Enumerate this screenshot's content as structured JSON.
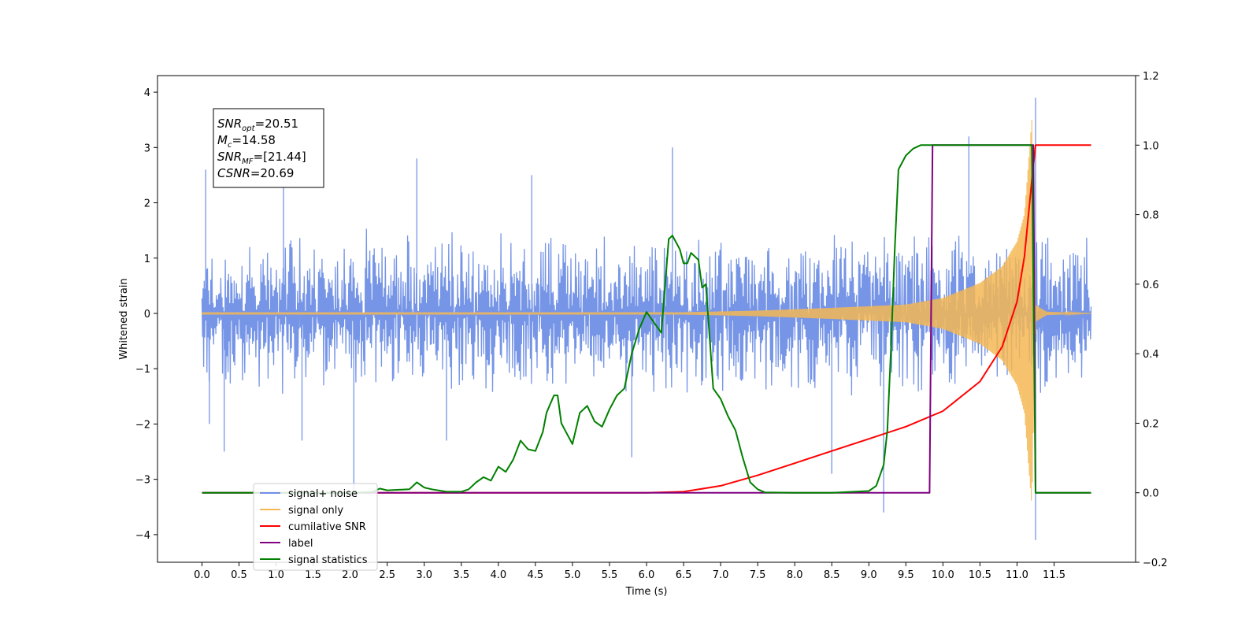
{
  "chart_data": {
    "type": "line",
    "xlabel": "Time (s)",
    "ylabel_left": "Whitened strain",
    "xlim": [
      -0.6,
      12.6
    ],
    "ylim_left": [
      -4.5,
      4.3
    ],
    "ylim_right": [
      -0.2,
      1.2
    ],
    "x_ticks": [
      0.0,
      0.5,
      1.0,
      1.5,
      2.0,
      2.5,
      3.0,
      3.5,
      4.0,
      4.5,
      5.0,
      5.5,
      6.0,
      6.5,
      7.0,
      7.5,
      8.0,
      8.5,
      9.0,
      9.5,
      10.0,
      10.5,
      11.0,
      11.5
    ],
    "x_tick_labels": [
      "0.0",
      "0.5",
      "1.0",
      "1.5",
      "2.0",
      "2.5",
      "3.0",
      "3.5",
      "4.0",
      "4.5",
      "5.0",
      "5.5",
      "6.0",
      "6.5",
      "7.0",
      "7.5",
      "8.0",
      "8.5",
      "9.0",
      "9.5",
      "10.0",
      "10.5",
      "11.0",
      "11.5"
    ],
    "y_left_ticks": [
      4,
      3,
      2,
      1,
      0,
      -1,
      -2,
      -3,
      -4
    ],
    "y_left_tick_labels": [
      "4",
      "3",
      "2",
      "1",
      "0",
      "−1",
      "−2",
      "−3",
      "−4"
    ],
    "y_right_ticks": [
      1.2,
      1.0,
      0.8,
      0.6,
      0.4,
      0.2,
      0.0,
      -0.2
    ],
    "y_right_tick_labels": [
      "1.2",
      "1.0",
      "0.8",
      "0.6",
      "0.4",
      "0.2",
      "0.0",
      "−0.2"
    ],
    "annotation": {
      "lines": [
        {
          "sym": "SNR",
          "sub": "opt",
          "value": "=20.51"
        },
        {
          "sym": "M",
          "sub": "c",
          "value": "=14.58"
        },
        {
          "sym": "SNR",
          "sub": "MF",
          "value": "=[21.44]"
        },
        {
          "sym": "CSNR",
          "sub": "",
          "value": "=20.69"
        }
      ]
    },
    "legend": {
      "position": "lower-left",
      "entries": [
        {
          "label": "signal+ noise",
          "color": "#6f8fe6"
        },
        {
          "label": "signal only",
          "color": "#f5b754"
        },
        {
          "label": "cumilative SNR",
          "color": "#ff0000"
        },
        {
          "label": "label",
          "color": "#800080"
        },
        {
          "label": "signal statistics",
          "color": "#008000"
        }
      ]
    },
    "series": [
      {
        "name": "signal+ noise",
        "axis": "left",
        "color": "#6f8fe6",
        "style": "noise-band",
        "x_range": [
          0.0,
          12.0
        ],
        "band": [
          -1.6,
          1.6
        ],
        "spikes": [
          {
            "x": 0.05,
            "y": 2.6
          },
          {
            "x": 0.1,
            "y": -2.0
          },
          {
            "x": 0.3,
            "y": -2.5
          },
          {
            "x": 1.1,
            "y": 2.5
          },
          {
            "x": 1.35,
            "y": -2.3
          },
          {
            "x": 2.05,
            "y": -3.3
          },
          {
            "x": 2.9,
            "y": 2.8
          },
          {
            "x": 3.3,
            "y": -2.3
          },
          {
            "x": 4.45,
            "y": 2.5
          },
          {
            "x": 5.8,
            "y": -2.6
          },
          {
            "x": 6.35,
            "y": 3.0
          },
          {
            "x": 8.5,
            "y": -2.9
          },
          {
            "x": 9.2,
            "y": -3.6
          },
          {
            "x": 10.35,
            "y": 3.2
          },
          {
            "x": 11.25,
            "y": 3.9
          },
          {
            "x": 11.25,
            "y": -4.1
          }
        ]
      },
      {
        "name": "signal only",
        "axis": "left",
        "color": "#f5b754",
        "style": "chirp",
        "x_range": [
          0.0,
          12.0
        ],
        "merger_x": 11.22,
        "envelope": [
          [
            6.5,
            0.02
          ],
          [
            7.5,
            0.05
          ],
          [
            8.5,
            0.1
          ],
          [
            9.5,
            0.16
          ],
          [
            10.0,
            0.28
          ],
          [
            10.5,
            0.55
          ],
          [
            10.8,
            0.85
          ],
          [
            11.0,
            1.3
          ],
          [
            11.1,
            1.8
          ],
          [
            11.2,
            3.5
          ],
          [
            11.25,
            0.15
          ],
          [
            11.4,
            0.03
          ],
          [
            12.0,
            0.0
          ]
        ]
      },
      {
        "name": "cumilative SNR",
        "axis": "right",
        "color": "#ff0000",
        "x": [
          0.0,
          6.0,
          6.5,
          7.0,
          7.5,
          8.0,
          8.5,
          9.0,
          9.5,
          10.0,
          10.5,
          10.8,
          11.0,
          11.1,
          11.2,
          11.25,
          12.0
        ],
        "y": [
          0.0,
          0.0,
          0.003,
          0.02,
          0.05,
          0.085,
          0.12,
          0.155,
          0.19,
          0.235,
          0.32,
          0.42,
          0.55,
          0.68,
          0.9,
          1.0,
          1.0
        ]
      },
      {
        "name": "label",
        "axis": "right",
        "color": "#800080",
        "x": [
          0.0,
          9.82,
          9.86,
          11.22,
          11.25,
          12.0
        ],
        "y": [
          0.0,
          0.0,
          1.0,
          1.0,
          0.0,
          0.0
        ]
      },
      {
        "name": "signal statistics",
        "axis": "right",
        "color": "#008000",
        "x": [
          0.0,
          2.0,
          2.3,
          2.4,
          2.5,
          2.8,
          2.9,
          3.0,
          3.1,
          3.3,
          3.5,
          3.6,
          3.7,
          3.8,
          3.9,
          4.0,
          4.1,
          4.2,
          4.3,
          4.4,
          4.5,
          4.6,
          4.65,
          4.75,
          4.8,
          4.85,
          4.9,
          5.0,
          5.1,
          5.2,
          5.3,
          5.4,
          5.5,
          5.6,
          5.7,
          5.8,
          5.9,
          6.0,
          6.1,
          6.2,
          6.3,
          6.35,
          6.45,
          6.5,
          6.55,
          6.6,
          6.7,
          6.75,
          6.8,
          6.9,
          7.0,
          7.1,
          7.2,
          7.3,
          7.4,
          7.5,
          7.6,
          8.0,
          8.5,
          9.0,
          9.1,
          9.2,
          9.25,
          9.3,
          9.35,
          9.4,
          9.45,
          9.5,
          9.6,
          9.7,
          9.8,
          10.0,
          10.5,
          11.0,
          11.2,
          11.25,
          11.3,
          12.0
        ],
        "y": [
          0.0,
          0.0,
          0.002,
          0.012,
          0.007,
          0.01,
          0.03,
          0.015,
          0.01,
          0.003,
          0.003,
          0.01,
          0.03,
          0.045,
          0.035,
          0.075,
          0.06,
          0.095,
          0.15,
          0.125,
          0.12,
          0.175,
          0.23,
          0.28,
          0.28,
          0.2,
          0.18,
          0.14,
          0.23,
          0.25,
          0.205,
          0.19,
          0.24,
          0.28,
          0.3,
          0.4,
          0.47,
          0.52,
          0.49,
          0.46,
          0.73,
          0.74,
          0.7,
          0.66,
          0.66,
          0.69,
          0.67,
          0.59,
          0.6,
          0.3,
          0.27,
          0.22,
          0.18,
          0.1,
          0.03,
          0.01,
          0.001,
          0.0,
          0.0,
          0.005,
          0.02,
          0.08,
          0.18,
          0.42,
          0.7,
          0.93,
          0.95,
          0.97,
          0.99,
          1.0,
          1.0,
          1.0,
          1.0,
          1.0,
          1.0,
          0.0,
          0.0,
          0.0
        ]
      }
    ]
  }
}
